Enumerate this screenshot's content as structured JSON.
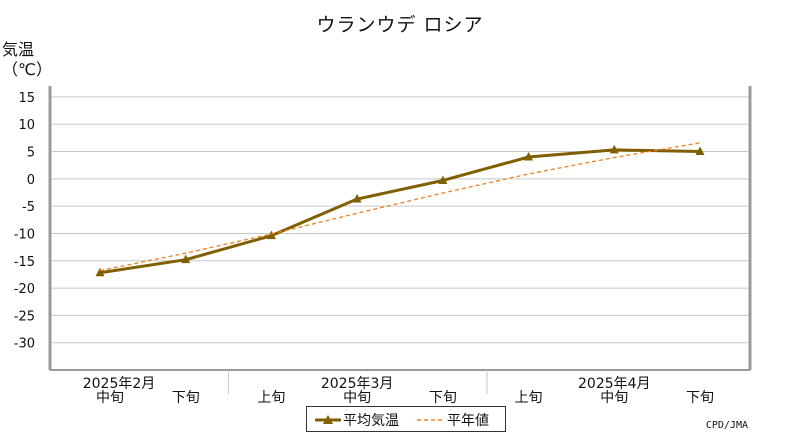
{
  "chart_data": {
    "type": "line",
    "title": "ウランウデ ロシア",
    "ylabel": "気温\n（℃）",
    "ylim": [
      -35,
      17
    ],
    "yticks": [
      15,
      10,
      5,
      0,
      -5,
      -10,
      -15,
      -20,
      -25,
      -30
    ],
    "grid": true,
    "categories": [
      "中旬",
      "下旬",
      "上旬",
      "中旬",
      "下旬",
      "上旬",
      "中旬",
      "下旬"
    ],
    "month_labels": [
      {
        "label": "2025年2月",
        "category_index": 0
      },
      {
        "label": "2025年3月",
        "category_index": 3
      },
      {
        "label": "2025年4月",
        "category_index": 6
      }
    ],
    "series": [
      {
        "name": "平均気温",
        "color": "#7f5f00",
        "style": "solid-triangle-markers",
        "values": [
          -17.2,
          -14.8,
          -10.4,
          -3.7,
          -0.3,
          4.0,
          5.3,
          5.0
        ]
      },
      {
        "name": "平年値",
        "color": "#f07f20",
        "style": "dashed",
        "values": [
          -16.8,
          -13.6,
          -10.1,
          -6.3,
          -2.6,
          0.9,
          3.9,
          6.6
        ]
      }
    ],
    "legend_position": "bottom-center"
  },
  "credit": "CPD/JMA"
}
